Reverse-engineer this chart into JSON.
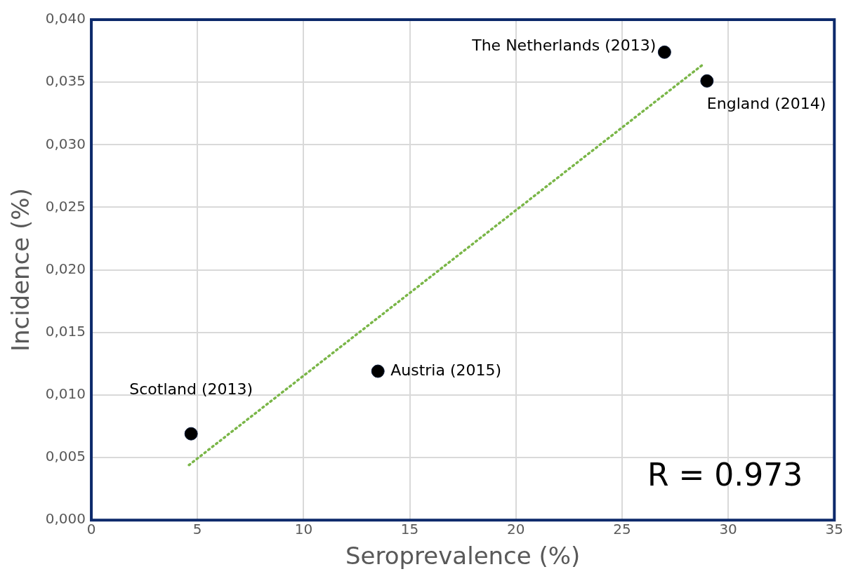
{
  "chart_data": {
    "type": "scatter",
    "xlabel": "Seroprevalence (%)",
    "ylabel": "Incidence (%)",
    "xlim": [
      0,
      35
    ],
    "xticks": [
      0,
      5,
      10,
      15,
      20,
      25,
      30,
      35
    ],
    "ylim": [
      0,
      0.04
    ],
    "yticks": [
      {
        "value": 0,
        "label": "0,000"
      },
      {
        "value": 0.005,
        "label": "0,005"
      },
      {
        "value": 0.01,
        "label": "0,010"
      },
      {
        "value": 0.015,
        "label": "0,015"
      },
      {
        "value": 0.02,
        "label": "0,020"
      },
      {
        "value": 0.025,
        "label": "0,025"
      },
      {
        "value": 0.03,
        "label": "0,030"
      },
      {
        "value": 0.035,
        "label": "0,035"
      },
      {
        "value": 0.04,
        "label": "0,040"
      }
    ],
    "grid": true,
    "legend": false,
    "series": [
      {
        "type": "scatter",
        "color": "#000000",
        "marker": "circle",
        "x": [
          4.7,
          13.5,
          27.0,
          29.0
        ],
        "values": [
          0.0069,
          0.0119,
          0.0374,
          0.0351
        ]
      },
      {
        "type": "line",
        "color": "#7ab648",
        "marker": "none",
        "line_style": "dotted",
        "x": [
          4.6,
          28.8
        ],
        "values": [
          0.0044,
          0.0364
        ]
      }
    ],
    "annotations": [
      {
        "text": "Scotland (2013)",
        "x": 4.7,
        "y": 0.0069
      },
      {
        "text": "Austria (2015)",
        "x": 13.5,
        "y": 0.0119
      },
      {
        "text": "The Netherlands (2013)",
        "x": 27.0,
        "y": 0.0374
      },
      {
        "text": "England (2014)",
        "x": 29.0,
        "y": 0.0351
      },
      "R = 0.973"
    ]
  }
}
